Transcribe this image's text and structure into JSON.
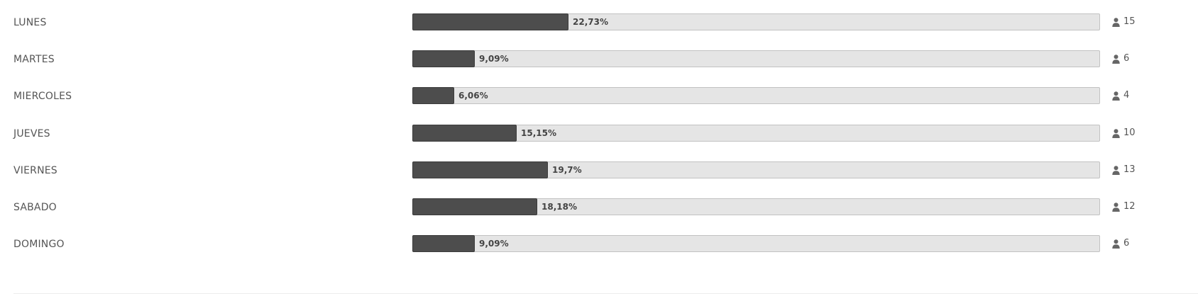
{
  "chart_data": {
    "type": "bar",
    "orientation": "horizontal",
    "value_unit": "%",
    "categories": [
      "LUNES",
      "MARTES",
      "MIERCOLES",
      "JUEVES",
      "VIERNES",
      "SABADO",
      "DOMINGO"
    ],
    "values": [
      22.73,
      9.09,
      6.06,
      15.15,
      19.7,
      18.18,
      9.09
    ],
    "value_labels": [
      "22,73%",
      "9,09%",
      "6,06%",
      "15,15%",
      "19,7%",
      "18,18%",
      "9,09%"
    ],
    "counts": [
      "15",
      "6",
      "4",
      "10",
      "13",
      "12",
      "6"
    ],
    "xlim": [
      0,
      100
    ],
    "grid": false,
    "colors": {
      "fill": "#4d4d4d",
      "track": "#e5e5e5",
      "track_border": "#c2c2c2",
      "label": "#555555",
      "percent": "#444444"
    },
    "count_icon": "user-icon"
  }
}
